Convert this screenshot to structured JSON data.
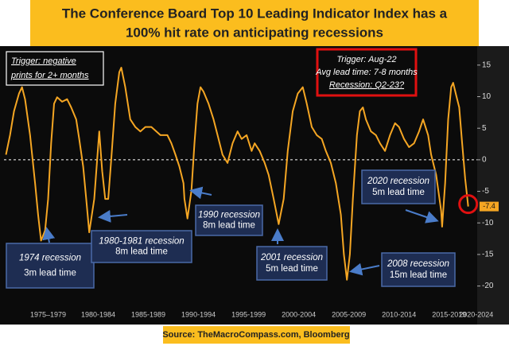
{
  "chart_data": {
    "type": "line",
    "title_lines": [
      "The Conference Board Top 10 Leading Indicator Index has a",
      "100% hit rate on anticipating recessions"
    ],
    "x": [
      1973.3,
      1973.7,
      1974.1,
      1974.6,
      1974.9,
      1975.2,
      1975.7,
      1976.2,
      1976.5,
      1976.8,
      1977.2,
      1977.5,
      1977.8,
      1978.1,
      1978.4,
      1978.9,
      1979.4,
      1979.8,
      1980.3,
      1980.6,
      1981.0,
      1981.3,
      1981.6,
      1982.1,
      1982.4,
      1982.6,
      1982.9,
      1983.2,
      1983.5,
      1983.8,
      1984.2,
      1984.6,
      1984.8,
      1985.2,
      1985.7,
      1986.2,
      1986.7,
      1987.2,
      1987.8,
      1988.3,
      1988.7,
      1989.4,
      1989.8,
      1990.2,
      1990.6,
      1991.0,
      1991.1,
      1991.4,
      1991.8,
      1992.1,
      1992.4,
      1992.7,
      1993.0,
      1993.5,
      1994.0,
      1994.5,
      1994.9,
      1995.4,
      1995.9,
      1996.4,
      1996.8,
      1997.3,
      1997.8,
      1998.1,
      1998.6,
      1999.1,
      1999.5,
      2000.0,
      2000.5,
      2001.0,
      2001.4,
      2001.9,
      2002.4,
      2002.9,
      2003.3,
      2003.8,
      2004.3,
      2004.8,
      2005.2,
      2005.7,
      2006.2,
      2006.7,
      2007.0,
      2007.3,
      2007.6,
      2007.9,
      2008.3,
      2008.6,
      2008.9,
      2009.2,
      2009.7,
      2010.2,
      2010.6,
      2011.1,
      2011.6,
      2012.1,
      2012.5,
      2013.0,
      2013.5,
      2014.0,
      2014.5,
      2014.9,
      2015.4,
      2015.7,
      2016.2,
      2016.7,
      2016.8,
      2017.1,
      2017.4,
      2017.7,
      2017.9,
      2018.2,
      2018.5,
      2018.8,
      2019.1,
      2019.4
    ],
    "series": [
      {
        "color": "#f5a623",
        "values": [
          0.8,
          3.9,
          7.7,
          10.5,
          11.5,
          9.6,
          3.9,
          -3.7,
          -8.7,
          -12.8,
          -11.2,
          -6.2,
          2.6,
          8.9,
          9.9,
          9.2,
          9.6,
          8.3,
          6.4,
          3.3,
          -1.1,
          -6.2,
          -11.5,
          -6.2,
          0.1,
          4.5,
          -1.8,
          -6.2,
          -6.2,
          0.1,
          8.9,
          13.9,
          14.6,
          11.5,
          6.4,
          5.2,
          4.5,
          5.2,
          5.2,
          4.5,
          3.9,
          3.9,
          2.6,
          0.8,
          -1.1,
          -3.7,
          -6.2,
          -9.3,
          -4.9,
          2.6,
          8.9,
          11.5,
          10.8,
          8.9,
          6.4,
          3.3,
          0.8,
          -0.5,
          2.6,
          4.5,
          3.3,
          3.9,
          1.4,
          2.6,
          1.4,
          -0.5,
          -2.4,
          -6.2,
          -10.2,
          -6.2,
          1.4,
          7.7,
          10.5,
          11.5,
          8.9,
          5.2,
          3.9,
          3.3,
          1.4,
          -0.5,
          -3.7,
          -8.7,
          -15.0,
          -19.0,
          -15.0,
          -6.2,
          3.9,
          7.7,
          8.3,
          6.4,
          4.5,
          3.9,
          2.6,
          1.4,
          3.9,
          5.8,
          5.2,
          3.3,
          2.0,
          2.6,
          4.5,
          6.4,
          3.9,
          0.8,
          -2.4,
          -8.1,
          -10.6,
          -3.7,
          6.4,
          11.5,
          12.2,
          10.2,
          8.3,
          2.6,
          -3.0,
          -7.4
        ]
      }
    ],
    "last_value_label": "-7.4",
    "xlim": [
      1973.1,
      2019.9
    ],
    "xticks": [
      {
        "value": 1977.5,
        "label": "1975–1979"
      },
      {
        "value": 1982.5,
        "label": "1980-1984"
      },
      {
        "value": 1987.5,
        "label": "1985-1989"
      },
      {
        "value": 1992.5,
        "label": "1990-1994"
      },
      {
        "value": 1997.5,
        "label": "1995-1999"
      },
      {
        "value": 2002.5,
        "label": "2000-2004"
      },
      {
        "value": 2007.5,
        "label": "2005-2009"
      },
      {
        "value": 2012.5,
        "label": "2010-2014"
      },
      {
        "value": 2017.5,
        "label": "2015-2019"
      },
      {
        "value": 2020.2,
        "label": "2020-2024"
      }
    ],
    "ylim": [
      -23.2,
      17.5
    ],
    "yticks": [
      15,
      10,
      5,
      0,
      -5,
      -10,
      -15,
      -20
    ],
    "y_axis_side": "right",
    "zero_line": true,
    "trigger_note": [
      "Trigger: negative",
      "prints for 2+ months"
    ],
    "current_note": [
      "Trigger: Aug-22",
      "Avg lead time: 7-8 months",
      "Recession: Q2-23?"
    ],
    "annotations": [
      {
        "lines": [
          "1974 recession",
          "3m lead time"
        ]
      },
      {
        "lines": [
          "1980-1981 recession",
          "8m lead time"
        ]
      },
      {
        "lines": [
          "1990 recession",
          "8m lead time"
        ]
      },
      {
        "lines": [
          "2001 recession",
          "5m lead time"
        ]
      },
      {
        "lines": [
          "2008 recession",
          "15m lead time"
        ]
      },
      {
        "lines": [
          "2020 recession",
          "5m lead time"
        ]
      }
    ],
    "source": "Source: TheMacroCompass.com, Bloomberg"
  }
}
